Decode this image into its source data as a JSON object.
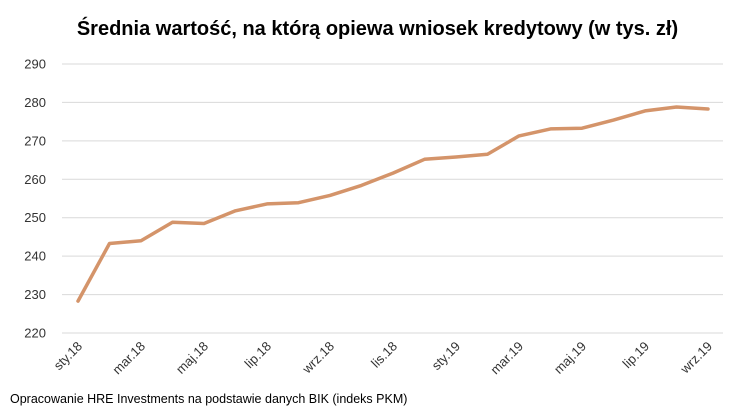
{
  "chart_data": {
    "type": "line",
    "title": "Średnia wartość, na którą opiewa wniosek kredytowy (w tys. zł)",
    "xlabel": "",
    "ylabel": "",
    "ylim": [
      220,
      290
    ],
    "yticks": [
      220,
      230,
      240,
      250,
      260,
      270,
      280,
      290
    ],
    "grid": "horizontal",
    "legend": "none",
    "categories": [
      "sty.18",
      "lut.18",
      "mar.18",
      "kwi.18",
      "maj.18",
      "cze.18",
      "lip.18",
      "sie.18",
      "wrz.18",
      "paź.18",
      "lis.18",
      "gru.18",
      "sty.19",
      "lut.19",
      "mar.19",
      "kwi.19",
      "maj.19",
      "cze.19",
      "lip.19",
      "sie.19",
      "wrz.19"
    ],
    "xtick_labels": [
      "sty.18",
      "mar.18",
      "maj.18",
      "lip.18",
      "wrz.18",
      "lis.18",
      "sty.19",
      "mar.19",
      "maj.19",
      "lip.19",
      "wrz.19"
    ],
    "series": [
      {
        "values": [
          228.3,
          243.3,
          244.0,
          248.8,
          248.5,
          251.8,
          253.6,
          253.9,
          255.8,
          258.4,
          261.6,
          265.2,
          265.8,
          266.5,
          271.3,
          273.1,
          273.3,
          275.4,
          277.8,
          278.8,
          278.3
        ],
        "color": "#d4946a"
      }
    ]
  },
  "footer": {
    "source": "Opracowanie HRE Investments na podstawie danych BIK (indeks PKM)"
  }
}
